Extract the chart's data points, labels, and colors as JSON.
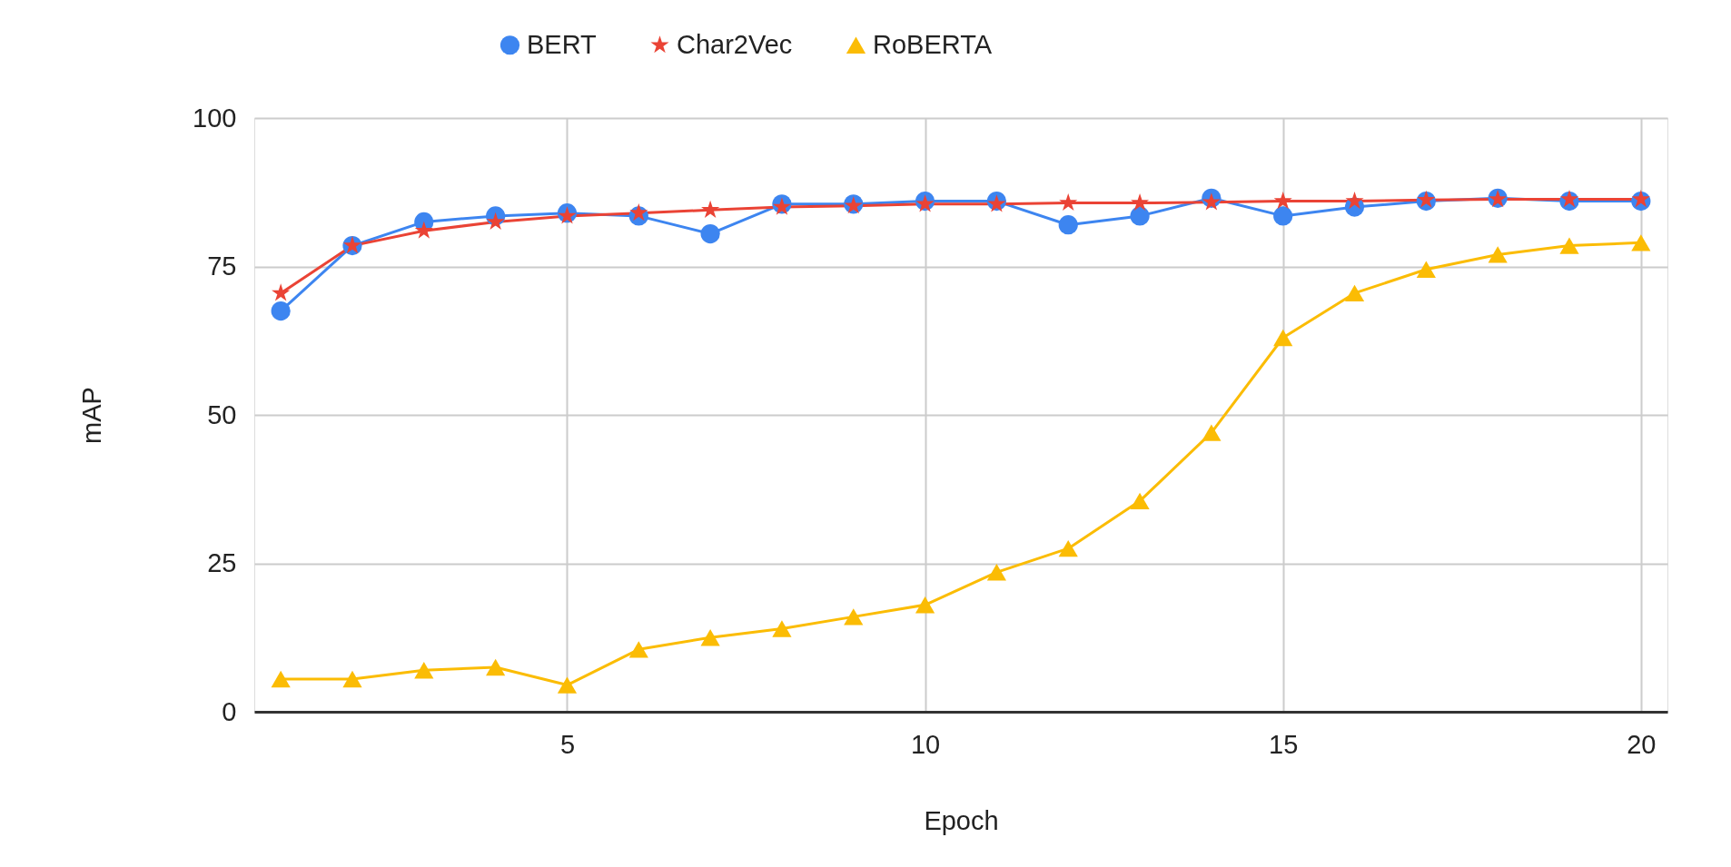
{
  "chart_data": {
    "type": "line",
    "xlabel": "Epoch",
    "ylabel": "mAP",
    "x": [
      1,
      2,
      3,
      4,
      5,
      6,
      7,
      8,
      9,
      10,
      11,
      12,
      13,
      14,
      15,
      16,
      17,
      18,
      19,
      20
    ],
    "series": [
      {
        "name": "BERT",
        "color": "#3d85f0",
        "marker": "circle",
        "values": [
          67.5,
          78.5,
          82.5,
          83.5,
          84,
          83.5,
          80.5,
          85.5,
          85.5,
          86,
          86,
          82,
          83.5,
          86.5,
          83.5,
          85,
          86,
          86.5,
          86,
          86
        ]
      },
      {
        "name": "Char2Vec",
        "color": "#ea4335",
        "marker": "star",
        "values": [
          70.5,
          78.5,
          81,
          82.5,
          83.5,
          84,
          84.5,
          85,
          85.2,
          85.5,
          85.5,
          85.7,
          85.7,
          85.8,
          86,
          86,
          86.2,
          86.3,
          86.3,
          86.3
        ]
      },
      {
        "name": "RoBERTA",
        "color": "#fbbc04",
        "marker": "triangle",
        "values": [
          5.5,
          5.5,
          7,
          7.5,
          4.5,
          10.5,
          12.5,
          14,
          16,
          18,
          23.5,
          27.5,
          35.5,
          47,
          63,
          70.5,
          74.5,
          77,
          78.5,
          79
        ]
      }
    ],
    "xlim": [
      0.63,
      20.37
    ],
    "xticks": [
      5,
      10,
      15,
      20
    ],
    "ylim": [
      0,
      100
    ],
    "yticks": [
      0,
      25,
      50,
      75,
      100
    ],
    "grid": true,
    "legend": "top",
    "line_style": "solid"
  }
}
